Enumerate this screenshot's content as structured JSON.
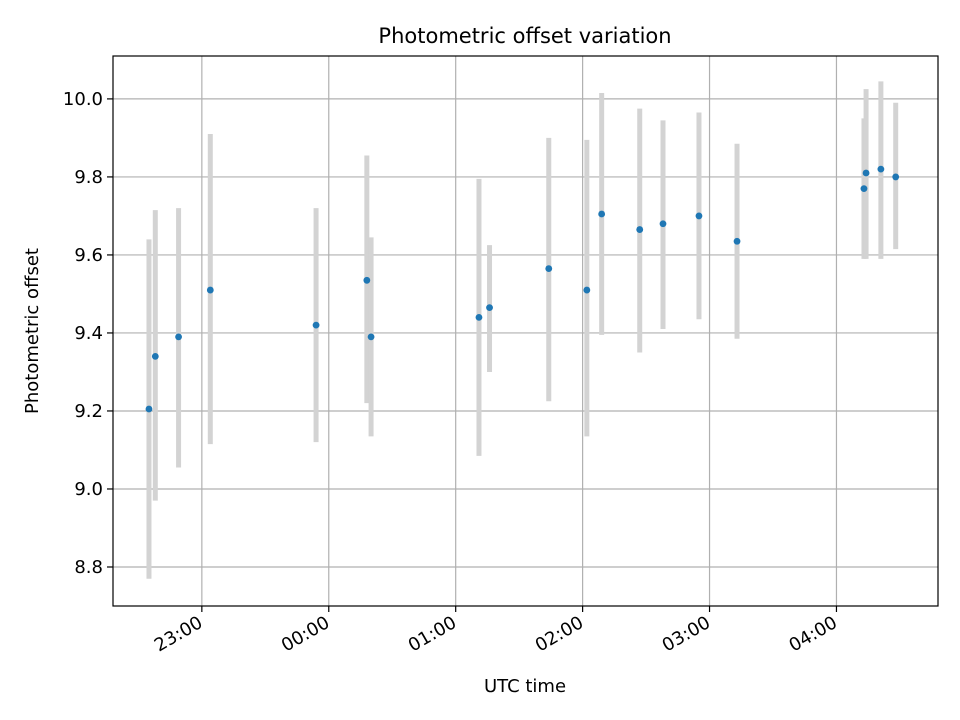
{
  "chart_data": {
    "type": "scatter",
    "title": "Photometric offset variation",
    "xlabel": "UTC time",
    "ylabel": "Photometric offset",
    "x_axis_kind": "time",
    "xlim": [
      "22:18",
      "04:48"
    ],
    "ylim": [
      8.7,
      10.11
    ],
    "x_ticks": [
      "23:00",
      "00:00",
      "01:00",
      "02:00",
      "03:00",
      "04:00"
    ],
    "y_ticks": [
      8.8,
      9.0,
      9.2,
      9.4,
      9.6,
      9.8,
      10.0
    ],
    "grid": true,
    "legend": "none",
    "series": [
      {
        "marker_color": "#1f77b4",
        "errorbar_color": "#d3d3d3",
        "points": [
          {
            "x": "22:35",
            "y": 9.205,
            "ylow": 8.77,
            "yhigh": 9.64
          },
          {
            "x": "22:38",
            "y": 9.34,
            "ylow": 8.97,
            "yhigh": 9.715
          },
          {
            "x": "22:49",
            "y": 9.39,
            "ylow": 9.055,
            "yhigh": 9.72
          },
          {
            "x": "23:04",
            "y": 9.51,
            "ylow": 9.115,
            "yhigh": 9.91
          },
          {
            "x": "23:54",
            "y": 9.42,
            "ylow": 9.12,
            "yhigh": 9.72
          },
          {
            "x": "00:18",
            "y": 9.535,
            "ylow": 9.22,
            "yhigh": 9.855
          },
          {
            "x": "00:20",
            "y": 9.39,
            "ylow": 9.135,
            "yhigh": 9.645
          },
          {
            "x": "01:11",
            "y": 9.44,
            "ylow": 9.085,
            "yhigh": 9.795
          },
          {
            "x": "01:16",
            "y": 9.465,
            "ylow": 9.3,
            "yhigh": 9.625
          },
          {
            "x": "01:44",
            "y": 9.565,
            "ylow": 9.225,
            "yhigh": 9.9
          },
          {
            "x": "02:02",
            "y": 9.51,
            "ylow": 9.135,
            "yhigh": 9.895
          },
          {
            "x": "02:09",
            "y": 9.705,
            "ylow": 9.395,
            "yhigh": 10.015
          },
          {
            "x": "02:27",
            "y": 9.665,
            "ylow": 9.35,
            "yhigh": 9.975
          },
          {
            "x": "02:38",
            "y": 9.68,
            "ylow": 9.41,
            "yhigh": 9.945
          },
          {
            "x": "02:55",
            "y": 9.7,
            "ylow": 9.435,
            "yhigh": 9.965
          },
          {
            "x": "03:13",
            "y": 9.635,
            "ylow": 9.385,
            "yhigh": 9.885
          },
          {
            "x": "04:13",
            "y": 9.77,
            "ylow": 9.59,
            "yhigh": 9.95
          },
          {
            "x": "04:14",
            "y": 9.81,
            "ylow": 9.59,
            "yhigh": 10.025
          },
          {
            "x": "04:21",
            "y": 9.82,
            "ylow": 9.59,
            "yhigh": 10.045
          },
          {
            "x": "04:28",
            "y": 9.8,
            "ylow": 9.615,
            "yhigh": 9.99
          }
        ]
      }
    ]
  }
}
